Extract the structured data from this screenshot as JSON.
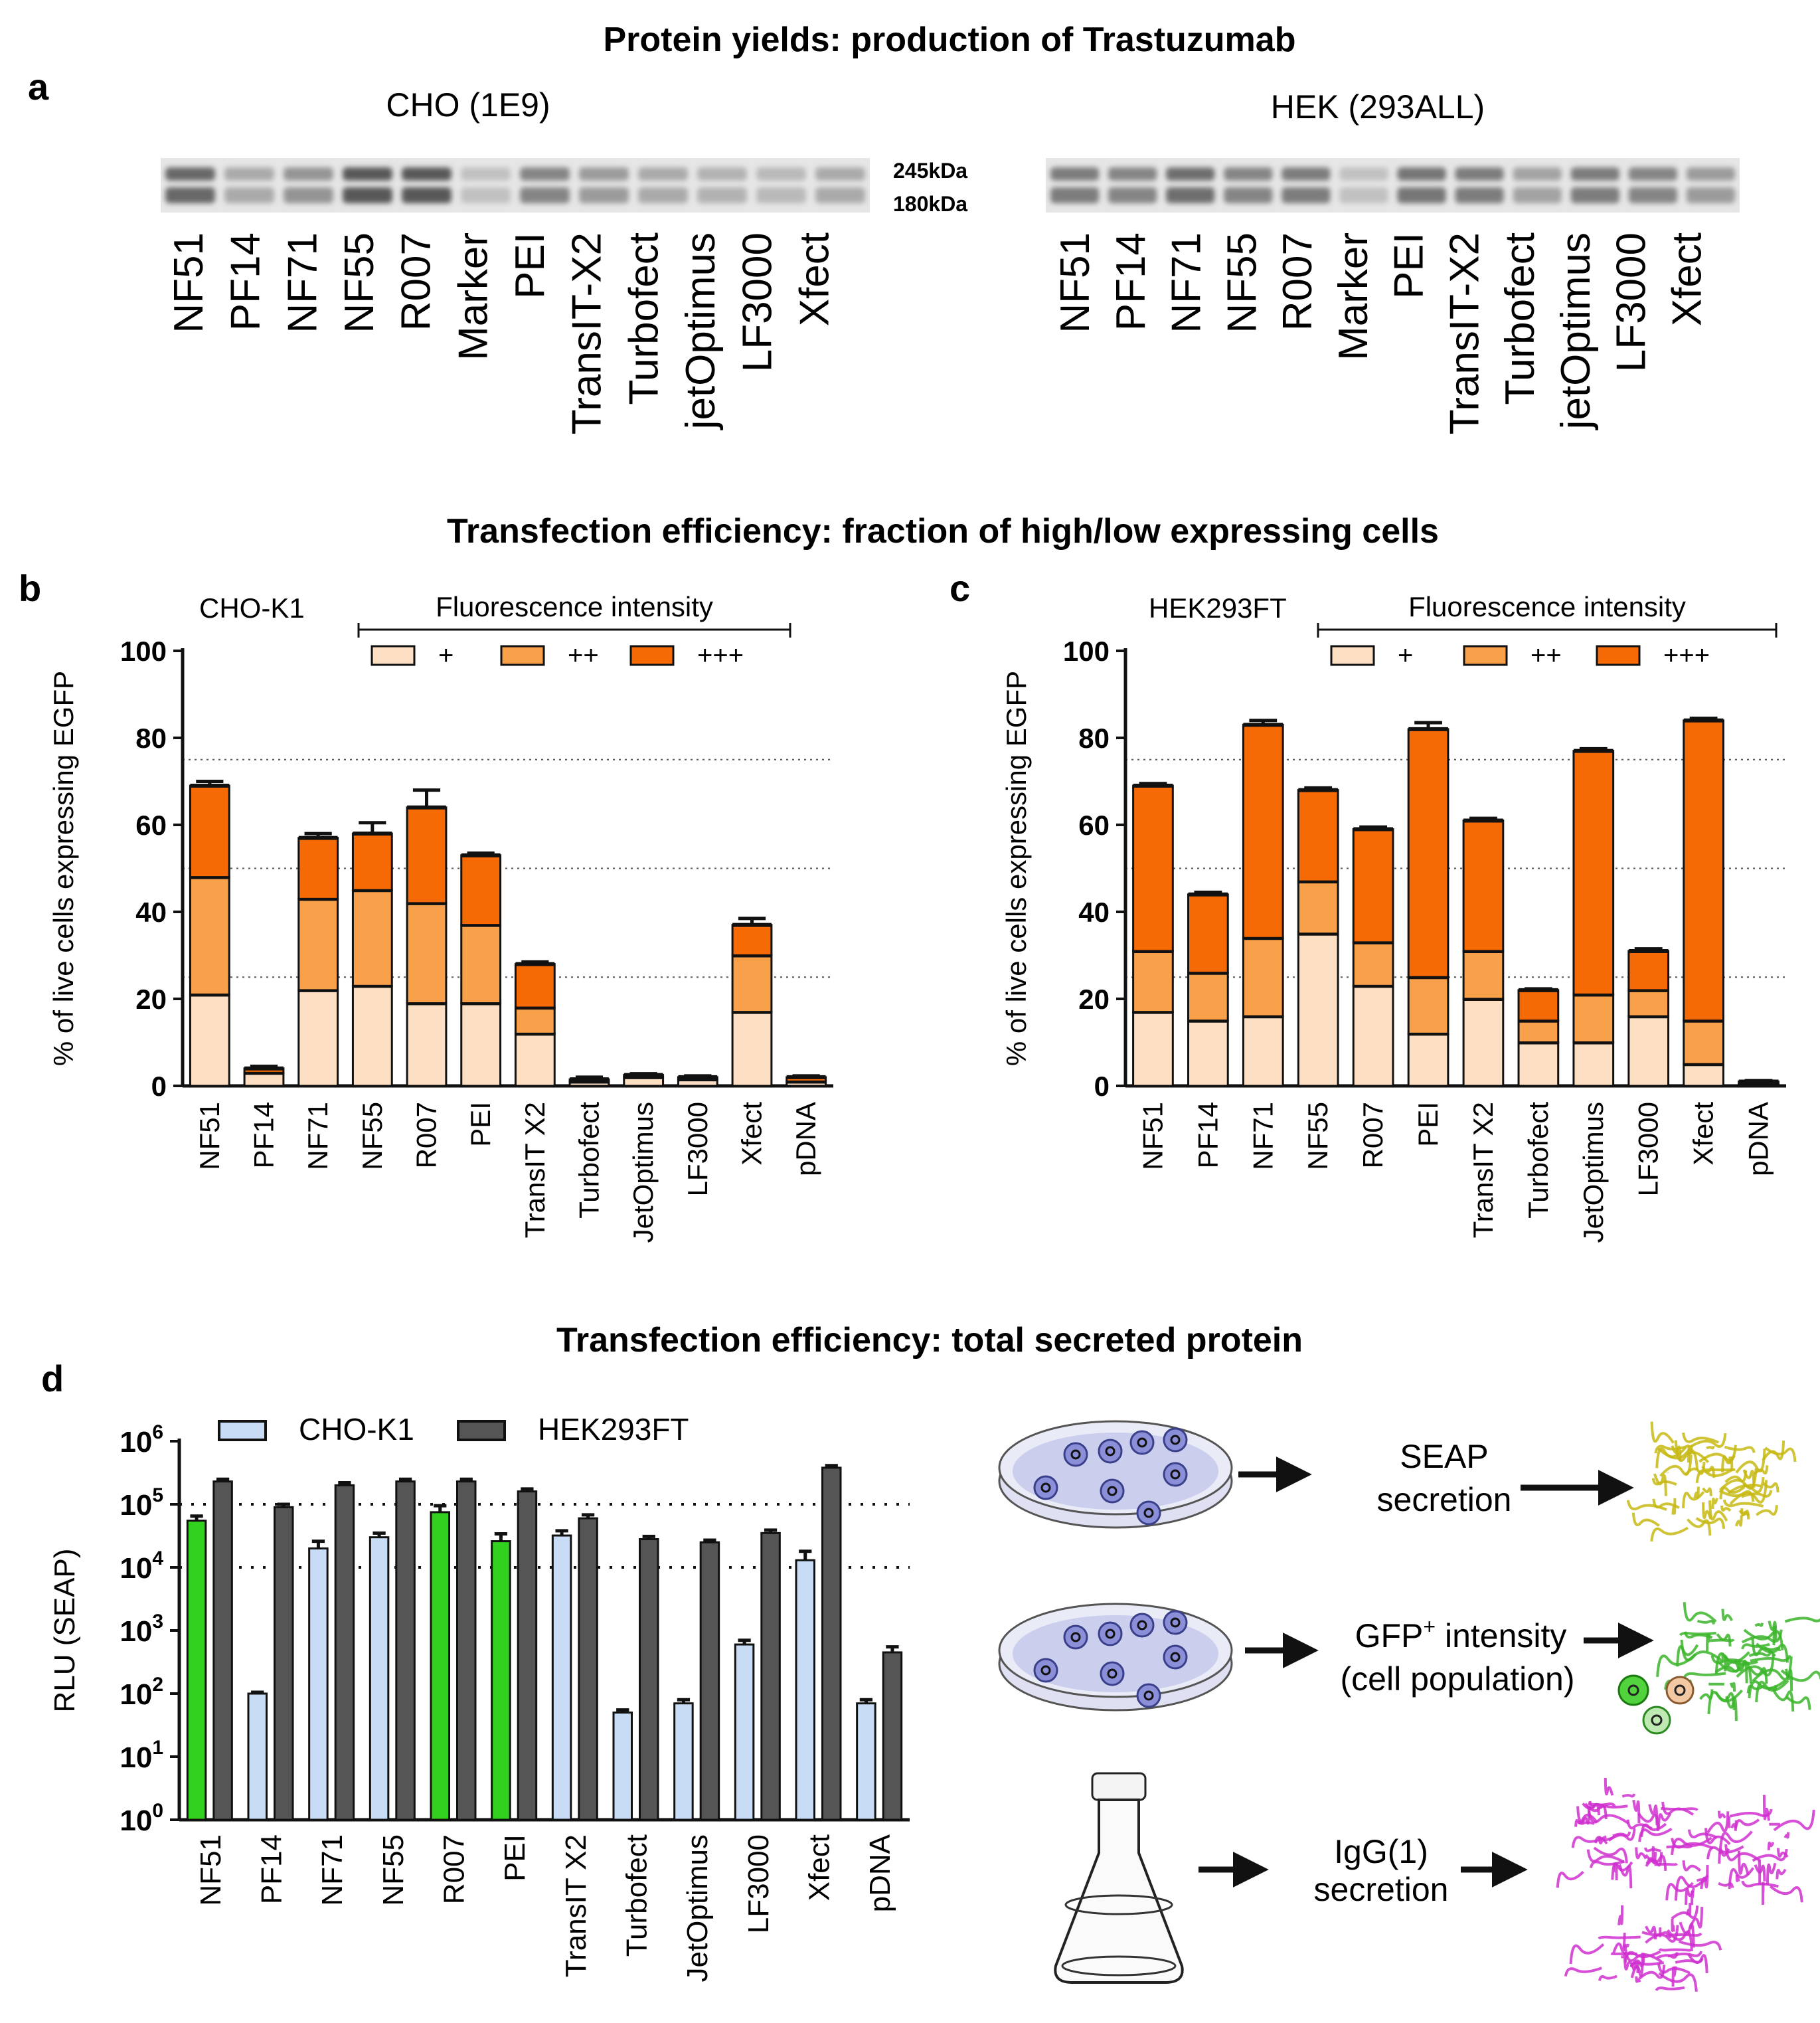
{
  "titles": {
    "a": "Protein yields: production of Trastuzumab",
    "bc": "Transfection efficiency: fraction of high/low expressing cells",
    "d": "Transfection efficiency: total secreted protein"
  },
  "panel_labels": {
    "a": "a",
    "b": "b",
    "c": "c",
    "d": "d"
  },
  "blots": [
    {
      "title": "CHO (1E9)",
      "lanes": [
        "NF51",
        "PF14",
        "NF71",
        "NF55",
        "R007",
        "Marker",
        "PEI",
        "TransIT-X2",
        "Turbofect",
        "jetOptimus",
        "LF3000",
        "Xfect"
      ],
      "intensity": [
        0.75,
        0.3,
        0.45,
        0.85,
        0.85,
        0.15,
        0.55,
        0.4,
        0.3,
        0.25,
        0.2,
        0.3
      ],
      "markers": [
        "245kDa",
        "180kDa"
      ]
    },
    {
      "title": "HEK (293ALL)",
      "lanes": [
        "NF51",
        "PF14",
        "NF71",
        "NF55",
        "R007",
        "Marker",
        "PEI",
        "TransIT-X2",
        "Turbofect",
        "jetOptimus",
        "LF3000",
        "Xfect"
      ],
      "intensity": [
        0.6,
        0.55,
        0.7,
        0.55,
        0.6,
        0.15,
        0.65,
        0.6,
        0.35,
        0.6,
        0.55,
        0.4
      ],
      "markers": []
    }
  ],
  "stack_legend": {
    "header": "Fluorescence intensity",
    "items": [
      {
        "label": "+",
        "color": "#fde0c4"
      },
      {
        "label": "++",
        "color": "#f8a04a"
      },
      {
        "label": "+++",
        "color": "#f56a05"
      }
    ]
  },
  "chart_data": [
    {
      "panel": "b",
      "type": "bar",
      "stacked": true,
      "title": "CHO-K1",
      "ylabel": "% of live cells expressing EGFP",
      "ylim": [
        0,
        100
      ],
      "yticks": [
        "0",
        "20",
        "40",
        "60",
        "80",
        "100"
      ],
      "reference_lines": [
        25,
        50,
        75
      ],
      "categories": [
        "NF51",
        "PF14",
        "NF71",
        "NF55",
        "R007",
        "PEI",
        "TransIT X2",
        "Turbofect",
        "JetOptimus",
        "LF3000",
        "Xfect",
        "pDNA"
      ],
      "series": [
        {
          "name": "+",
          "values": [
            21,
            3,
            22,
            23,
            19,
            19,
            12,
            1,
            2,
            1.5,
            17,
            1
          ]
        },
        {
          "name": "++",
          "values": [
            27,
            0,
            21,
            22,
            23,
            18,
            6,
            0,
            0,
            0,
            13,
            0
          ]
        },
        {
          "name": "+++",
          "values": [
            21,
            1,
            14,
            13,
            22,
            16,
            10,
            0.5,
            0.5,
            0.5,
            7,
            1
          ]
        }
      ],
      "errors": [
        1,
        0.5,
        1,
        2.5,
        4,
        0.5,
        0.5,
        0.5,
        0.3,
        0.3,
        1.5,
        0.3
      ]
    },
    {
      "panel": "c",
      "type": "bar",
      "stacked": true,
      "title": "HEK293FT",
      "ylabel": "% of live cells expressing EGFP",
      "ylim": [
        0,
        100
      ],
      "yticks": [
        "0",
        "20",
        "40",
        "60",
        "80",
        "100"
      ],
      "reference_lines": [
        25,
        50,
        75
      ],
      "categories": [
        "NF51",
        "PF14",
        "NF71",
        "NF55",
        "R007",
        "PEI",
        "TransIT X2",
        "Turbofect",
        "JetOptimus",
        "LF3000",
        "Xfect",
        "pDNA"
      ],
      "series": [
        {
          "name": "+",
          "values": [
            17,
            15,
            16,
            35,
            23,
            12,
            20,
            10,
            10,
            16,
            5,
            0.5
          ]
        },
        {
          "name": "++",
          "values": [
            14,
            11,
            18,
            12,
            10,
            13,
            11,
            5,
            11,
            6,
            10,
            0
          ]
        },
        {
          "name": "+++",
          "values": [
            38,
            18,
            49,
            21,
            26,
            57,
            30,
            7,
            56,
            9,
            69,
            0.5
          ]
        }
      ],
      "errors": [
        0.5,
        0.5,
        1,
        0.5,
        0.5,
        1.5,
        0.5,
        0.3,
        0.5,
        0.5,
        0.5,
        0.2
      ]
    },
    {
      "panel": "d",
      "type": "bar",
      "yscale": "log",
      "ylabel": "RLU (SEAP)",
      "ylim": [
        1,
        1000000
      ],
      "ytick_base": "10",
      "ytick_exps": [
        "0",
        "1",
        "2",
        "3",
        "4",
        "5",
        "6"
      ],
      "reference_lines": [
        10000,
        100000
      ],
      "categories": [
        "NF51",
        "PF14",
        "NF71",
        "NF55",
        "R007",
        "PEI",
        "TransIT X2",
        "Turbofect",
        "JetOptimus",
        "LF3000",
        "Xfect",
        "pDNA"
      ],
      "series": [
        {
          "name": "CHO-K1",
          "color": "#c9dcf5",
          "values": [
            55000,
            100,
            20000,
            30000,
            75000,
            26000,
            32000,
            50,
            70,
            600,
            13000,
            70
          ],
          "errors": [
            10000,
            5,
            6000,
            5000,
            20000,
            8000,
            6000,
            5,
            10,
            100,
            5000,
            10
          ]
        },
        {
          "name": "HEK293FT",
          "color": "#555555",
          "values": [
            230000,
            90000,
            200000,
            230000,
            230000,
            160000,
            60000,
            28000,
            25000,
            35000,
            380000,
            450
          ],
          "errors": [
            20000,
            10000,
            20000,
            20000,
            20000,
            15000,
            8000,
            3000,
            2000,
            4000,
            30000,
            100
          ]
        }
      ],
      "highlight_color": "#33d11f",
      "highlight_categories": [
        "NF51",
        "R007",
        "PEI"
      ]
    }
  ],
  "schematic": {
    "row1": [
      "SEAP",
      "secretion"
    ],
    "row2_line1": "GFP",
    "row2_sup": "+",
    "row2_line1_rest": " intensity",
    "row2_line2": "(cell population)",
    "row3": [
      "IgG(1)",
      "secretion"
    ]
  }
}
